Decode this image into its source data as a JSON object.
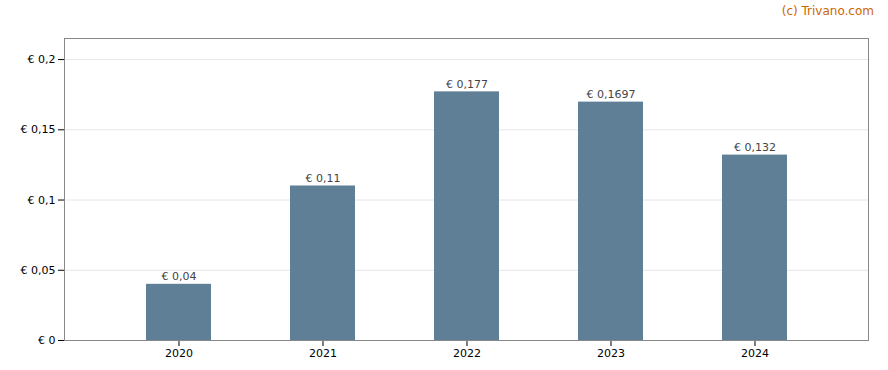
{
  "chart_data": {
    "type": "bar",
    "categories": [
      "2020",
      "2021",
      "2022",
      "2023",
      "2024"
    ],
    "values": [
      0.04,
      0.11,
      0.177,
      0.1697,
      0.132
    ],
    "value_labels": [
      "€ 0,04",
      "€ 0,11",
      "€ 0,177",
      "€ 0,1697",
      "€ 0,132"
    ],
    "data_labels": true,
    "color": "#5f7f96",
    "ylim": [
      0,
      0.215
    ],
    "yticks": [
      {
        "value": 0,
        "label": "€ 0"
      },
      {
        "value": 0.05,
        "label": "€ 0,05"
      },
      {
        "value": 0.1,
        "label": "€ 0,1"
      },
      {
        "value": 0.15,
        "label": "€ 0,15"
      },
      {
        "value": 0.2,
        "label": "€ 0,2"
      }
    ],
    "grid": true,
    "annotations": [
      {
        "text": "(c) Trivano.com",
        "color": "#cc6600"
      }
    ]
  }
}
